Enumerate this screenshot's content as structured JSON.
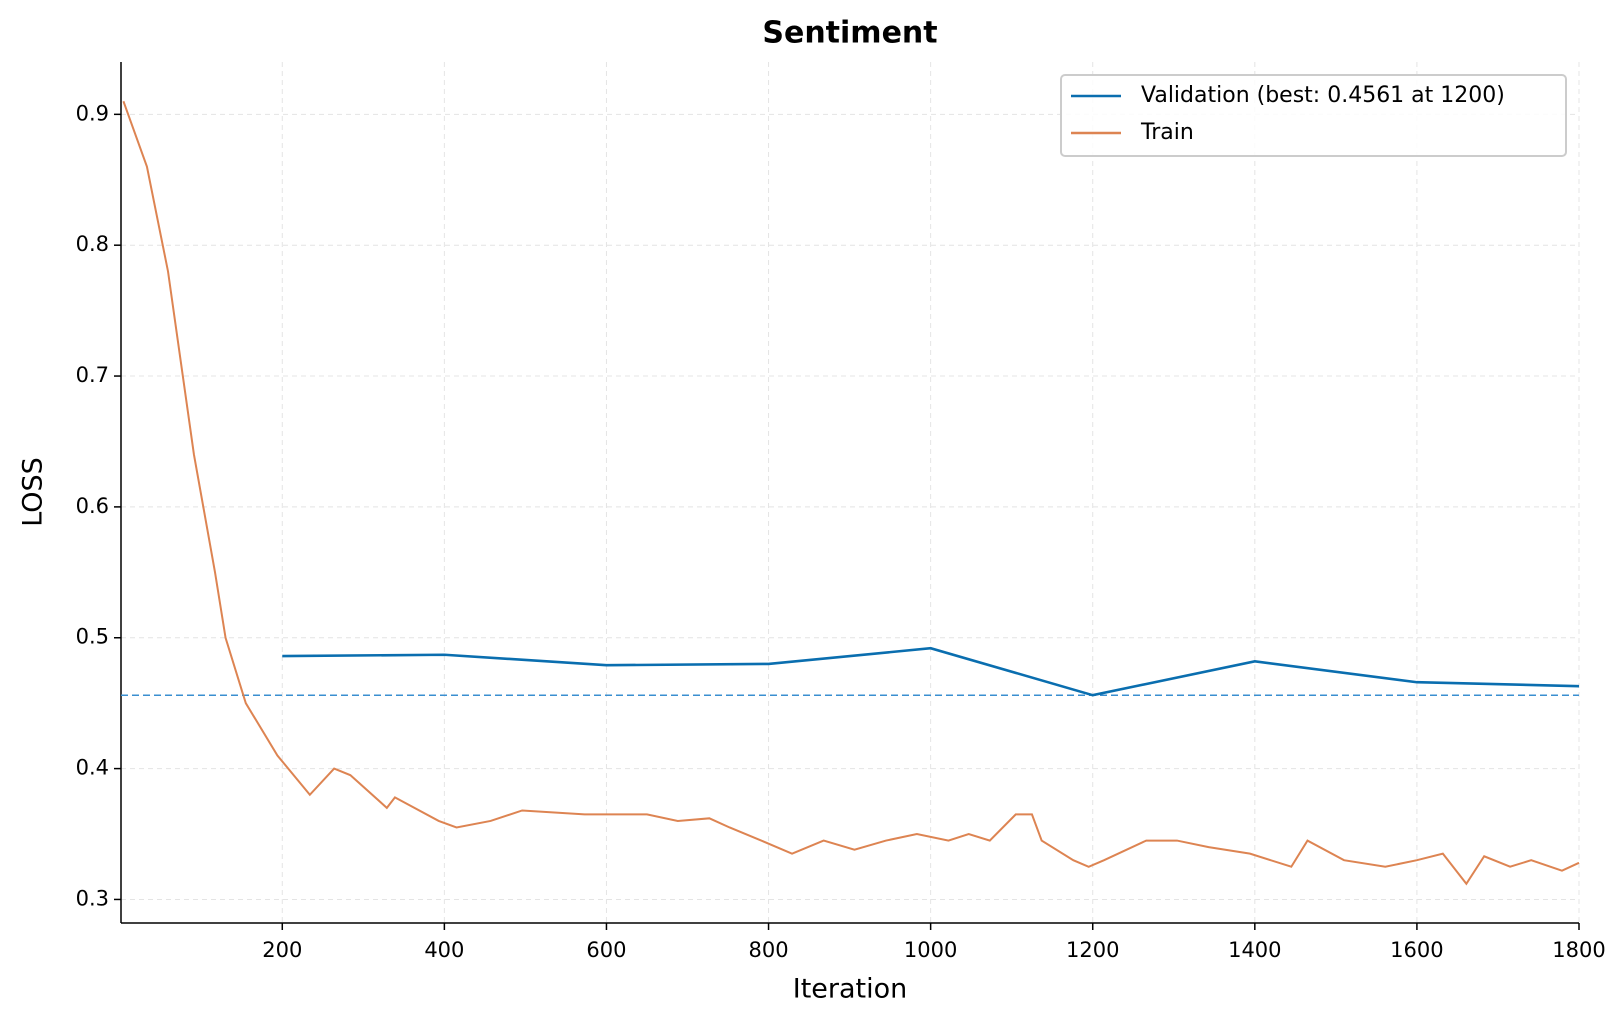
{
  "chart_data": {
    "type": "line",
    "title": "Sentiment",
    "x_label": "Iteration",
    "y_label": "LOSS",
    "xlim": [
      1,
      1800
    ],
    "ylim": [
      0.282,
      0.94
    ],
    "xticks": [
      200,
      400,
      600,
      800,
      1000,
      1200,
      1400,
      1600,
      1800
    ],
    "yticks": [
      0.3,
      0.4,
      0.5,
      0.6,
      0.7,
      0.8,
      0.9
    ],
    "grid": true,
    "legend": "upper right",
    "series": [
      {
        "name": "Validation (best: 0.4561 at 1200)",
        "color": "#0a6eaf",
        "x": [
          200,
          400,
          600,
          800,
          1000,
          1200,
          1400,
          1600,
          1800
        ],
        "values": [
          0.486,
          0.487,
          0.479,
          0.48,
          0.492,
          0.4561,
          0.482,
          0.466,
          0.463
        ]
      },
      {
        "name": "Train",
        "color": "#dd8452",
        "x": [
          4,
          33,
          59,
          91,
          117,
          130,
          155,
          194,
          234,
          264,
          284,
          329,
          339,
          393,
          415,
          457,
          496,
          573,
          650,
          688,
          727,
          752,
          791,
          829,
          868,
          906,
          945,
          983,
          1022,
          1047,
          1073,
          1105,
          1125,
          1137,
          1176,
          1195,
          1214,
          1266,
          1304,
          1343,
          1394,
          1445,
          1465,
          1510,
          1561,
          1600,
          1632,
          1661,
          1683,
          1715,
          1741,
          1779,
          1800
        ],
        "values": [
          0.91,
          0.86,
          0.78,
          0.64,
          0.55,
          0.5,
          0.45,
          0.41,
          0.38,
          0.4,
          0.395,
          0.37,
          0.378,
          0.36,
          0.355,
          0.36,
          0.368,
          0.365,
          0.365,
          0.36,
          0.362,
          0.355,
          0.345,
          0.335,
          0.345,
          0.338,
          0.345,
          0.35,
          0.345,
          0.35,
          0.345,
          0.365,
          0.365,
          0.345,
          0.33,
          0.325,
          0.33,
          0.345,
          0.345,
          0.34,
          0.335,
          0.325,
          0.345,
          0.33,
          0.325,
          0.33,
          0.335,
          0.312,
          0.333,
          0.325,
          0.33,
          0.322,
          0.328
        ]
      }
    ]
  }
}
